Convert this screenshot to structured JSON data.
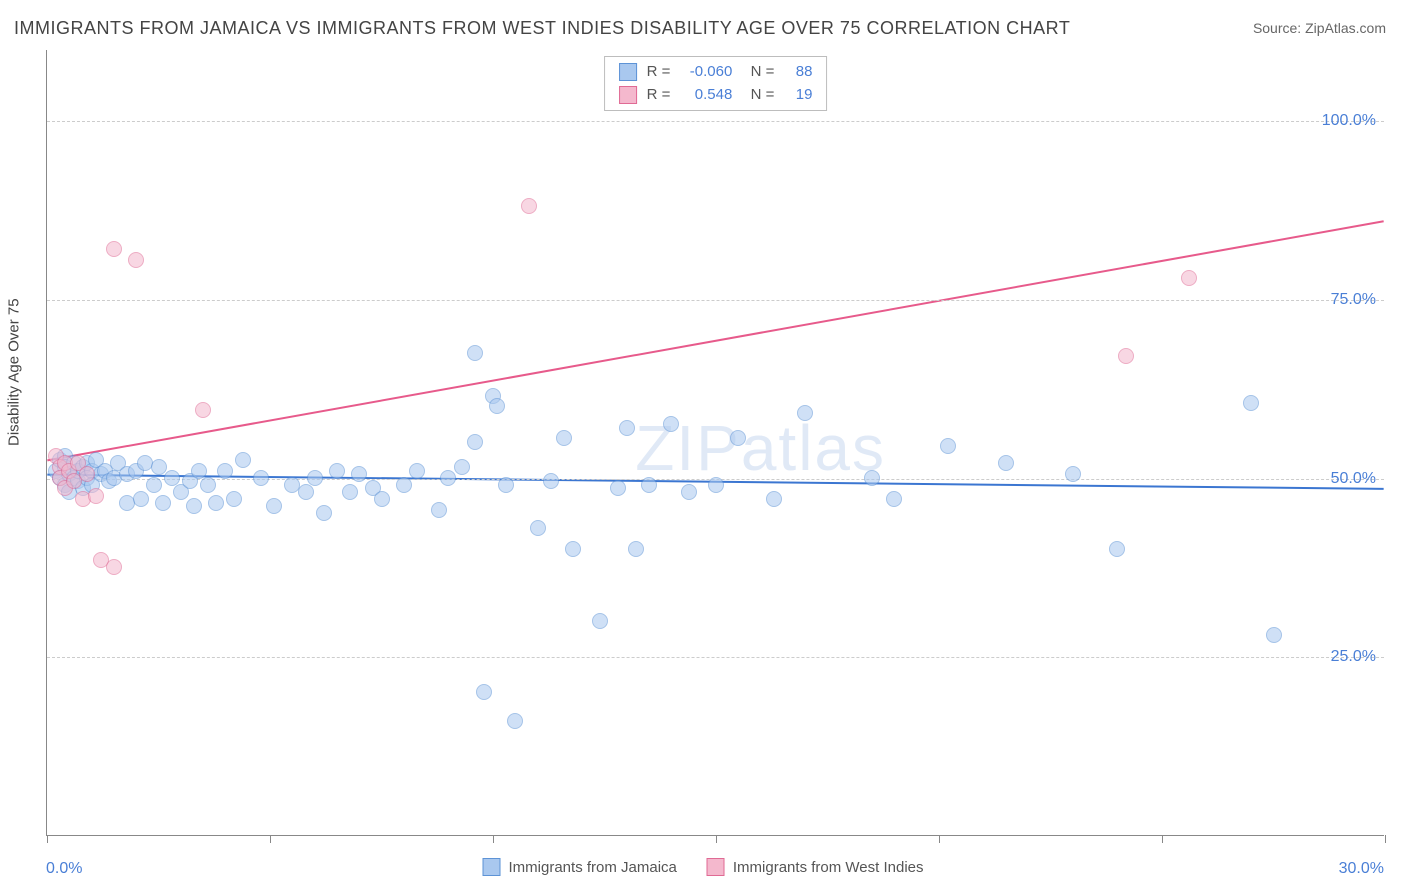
{
  "title": "IMMIGRANTS FROM JAMAICA VS IMMIGRANTS FROM WEST INDIES DISABILITY AGE OVER 75 CORRELATION CHART",
  "source": "Source: ZipAtlas.com",
  "watermark": "ZIPatlas",
  "chart": {
    "type": "scatter",
    "y_axis_title": "Disability Age Over 75",
    "xlim": [
      0,
      30
    ],
    "ylim": [
      0,
      110
    ],
    "x_ticks": [
      0,
      5,
      10,
      15,
      20,
      25,
      30
    ],
    "x_tick_labels_shown": {
      "min": "0.0%",
      "max": "30.0%"
    },
    "y_gridlines": [
      25,
      50,
      75,
      100
    ],
    "y_tick_labels": [
      "25.0%",
      "50.0%",
      "75.0%",
      "100.0%"
    ],
    "background_color": "#ffffff",
    "grid_color": "#cccccc",
    "axis_label_color": "#4a7fd6",
    "marker_radius": 8,
    "marker_opacity": 0.55,
    "series": [
      {
        "name": "Immigrants from Jamaica",
        "fill": "#a9c8ef",
        "stroke": "#5d93d6",
        "line_color": "#3b76d1",
        "line_width": 2,
        "R": "-0.060",
        "N": "88",
        "trend": {
          "x1": 0,
          "y1": 50.5,
          "x2": 30,
          "y2": 48.5
        },
        "points": [
          [
            0.2,
            51.0
          ],
          [
            0.3,
            50.0
          ],
          [
            0.3,
            52.5
          ],
          [
            0.4,
            49.0
          ],
          [
            0.4,
            53.0
          ],
          [
            0.4,
            51.5
          ],
          [
            0.5,
            50.5
          ],
          [
            0.5,
            48.0
          ],
          [
            0.6,
            52.0
          ],
          [
            0.6,
            50.0
          ],
          [
            0.7,
            49.5
          ],
          [
            0.7,
            51.0
          ],
          [
            0.8,
            51.5
          ],
          [
            0.8,
            48.5
          ],
          [
            0.9,
            50.0
          ],
          [
            0.9,
            52.0
          ],
          [
            1.0,
            51.0
          ],
          [
            1.0,
            49.0
          ],
          [
            1.1,
            52.5
          ],
          [
            1.2,
            50.5
          ],
          [
            1.3,
            51.0
          ],
          [
            1.4,
            49.5
          ],
          [
            1.5,
            50.0
          ],
          [
            1.6,
            52.0
          ],
          [
            1.8,
            50.5
          ],
          [
            1.8,
            46.5
          ],
          [
            2.0,
            51.0
          ],
          [
            2.1,
            47.0
          ],
          [
            2.2,
            52.0
          ],
          [
            2.4,
            49.0
          ],
          [
            2.5,
            51.5
          ],
          [
            2.6,
            46.5
          ],
          [
            2.8,
            50.0
          ],
          [
            3.0,
            48.0
          ],
          [
            3.2,
            49.5
          ],
          [
            3.3,
            46.0
          ],
          [
            3.4,
            51.0
          ],
          [
            3.6,
            49.0
          ],
          [
            3.8,
            46.5
          ],
          [
            4.0,
            51.0
          ],
          [
            4.2,
            47.0
          ],
          [
            4.4,
            52.5
          ],
          [
            4.8,
            50.0
          ],
          [
            5.1,
            46.0
          ],
          [
            5.5,
            49.0
          ],
          [
            5.8,
            48.0
          ],
          [
            6.0,
            50.0
          ],
          [
            6.2,
            45.0
          ],
          [
            6.5,
            51.0
          ],
          [
            6.8,
            48.0
          ],
          [
            7.0,
            50.5
          ],
          [
            7.3,
            48.5
          ],
          [
            7.5,
            47.0
          ],
          [
            8.0,
            49.0
          ],
          [
            8.3,
            51.0
          ],
          [
            8.8,
            45.5
          ],
          [
            9.0,
            50.0
          ],
          [
            9.3,
            51.5
          ],
          [
            9.6,
            55.0
          ],
          [
            9.6,
            67.5
          ],
          [
            9.8,
            20.0
          ],
          [
            10.0,
            61.5
          ],
          [
            10.1,
            60.0
          ],
          [
            10.3,
            49.0
          ],
          [
            10.5,
            16.0
          ],
          [
            11.0,
            43.0
          ],
          [
            11.3,
            49.5
          ],
          [
            11.6,
            55.5
          ],
          [
            11.8,
            40.0
          ],
          [
            12.4,
            30.0
          ],
          [
            12.8,
            48.5
          ],
          [
            13.0,
            57.0
          ],
          [
            13.2,
            40.0
          ],
          [
            13.5,
            49.0
          ],
          [
            14.0,
            57.5
          ],
          [
            14.4,
            48.0
          ],
          [
            15.0,
            49.0
          ],
          [
            15.5,
            55.5
          ],
          [
            16.3,
            47.0
          ],
          [
            17.0,
            59.0
          ],
          [
            18.5,
            50.0
          ],
          [
            19.0,
            47.0
          ],
          [
            20.2,
            54.5
          ],
          [
            21.5,
            52.0
          ],
          [
            23.0,
            50.5
          ],
          [
            24.0,
            40.0
          ],
          [
            27.0,
            60.5
          ],
          [
            27.5,
            28.0
          ]
        ]
      },
      {
        "name": "Immigrants from West Indies",
        "fill": "#f4b8cd",
        "stroke": "#e06a94",
        "line_color": "#e75a8b",
        "line_width": 2,
        "R": "0.548",
        "N": "19",
        "trend": {
          "x1": 0,
          "y1": 52.5,
          "x2": 30,
          "y2": 86.0
        },
        "points": [
          [
            0.2,
            53.0
          ],
          [
            0.3,
            51.5
          ],
          [
            0.3,
            50.0
          ],
          [
            0.4,
            52.0
          ],
          [
            0.4,
            48.5
          ],
          [
            0.5,
            51.0
          ],
          [
            0.6,
            49.5
          ],
          [
            0.7,
            52.0
          ],
          [
            0.8,
            47.0
          ],
          [
            0.9,
            50.5
          ],
          [
            1.1,
            47.5
          ],
          [
            1.2,
            38.5
          ],
          [
            1.5,
            82.0
          ],
          [
            1.5,
            37.5
          ],
          [
            2.0,
            80.5
          ],
          [
            3.5,
            59.5
          ],
          [
            10.8,
            88.0
          ],
          [
            24.2,
            67.0
          ],
          [
            25.6,
            78.0
          ]
        ]
      }
    ]
  },
  "top_legend": {
    "cols": [
      "R",
      "N"
    ]
  },
  "bottom_legend": [
    {
      "label": "Immigrants from Jamaica",
      "fill": "#a9c8ef",
      "stroke": "#5d93d6"
    },
    {
      "label": "Immigrants from West Indies",
      "fill": "#f4b8cd",
      "stroke": "#e06a94"
    }
  ]
}
